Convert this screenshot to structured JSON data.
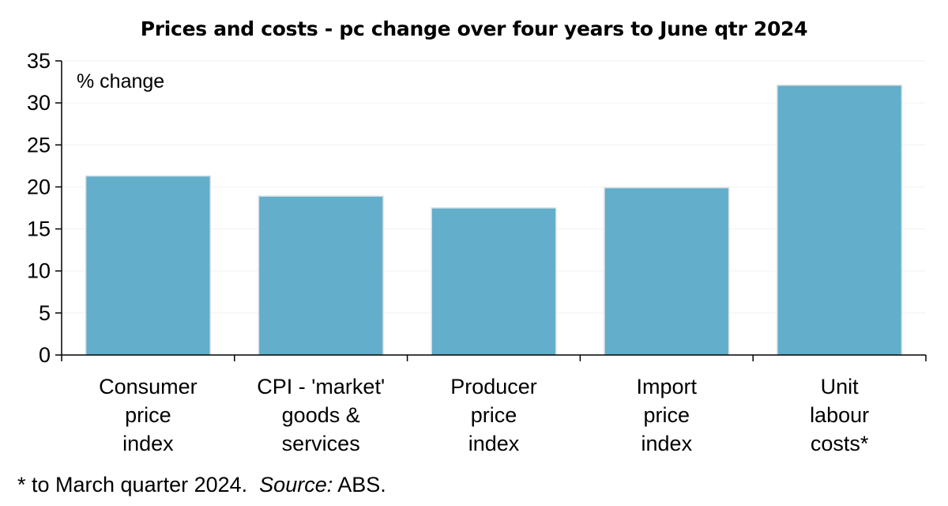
{
  "chart_data": {
    "type": "bar",
    "title": "Prices and costs - pc change over four years to June qtr 2024",
    "unit_label": "% change",
    "categories": [
      [
        "Consumer",
        "price",
        "index"
      ],
      [
        "CPI - 'market'",
        "goods &",
        "services"
      ],
      [
        "Producer",
        "price",
        "index"
      ],
      [
        "Import",
        "price",
        "index"
      ],
      [
        "Unit",
        "labour",
        "costs*"
      ]
    ],
    "values": [
      21.3,
      18.9,
      17.5,
      19.9,
      32.1
    ],
    "ylim": [
      0,
      35
    ],
    "yticks": [
      0,
      5,
      10,
      15,
      20,
      25,
      30,
      35
    ],
    "grid": true,
    "bar_color": "#62aecb"
  },
  "footnote": {
    "text": "* to March quarter 2024.  ",
    "source_label": "Source:",
    "source_value": " ABS."
  }
}
